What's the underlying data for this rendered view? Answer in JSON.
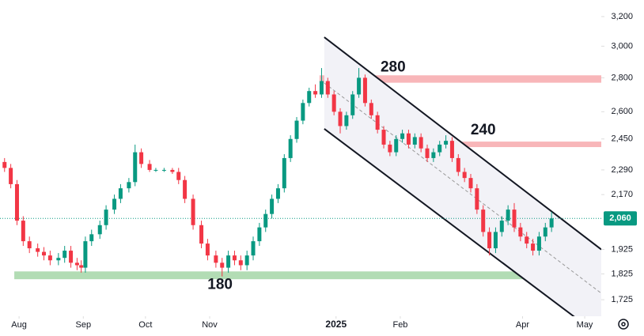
{
  "chart_data": {
    "type": "candlestick",
    "log_scale": true,
    "colors": {
      "up": "#089981",
      "down": "#f23645",
      "channel": "#131722",
      "channel_fill": "#f2f2f7"
    },
    "x": [
      -7,
      -4,
      -1,
      2,
      5,
      9,
      12,
      15,
      19,
      22,
      25,
      28,
      30,
      32,
      35,
      39,
      42,
      46,
      49,
      53,
      56,
      59,
      63,
      66,
      70,
      74,
      77,
      80,
      84,
      88,
      91,
      95,
      98,
      101,
      104,
      107,
      110,
      113,
      116,
      119,
      122,
      125,
      128,
      131,
      134,
      137,
      140,
      143,
      146,
      149,
      152,
      155,
      158,
      161,
      164,
      167,
      170,
      173,
      176,
      179,
      182,
      185,
      188,
      191,
      194,
      197,
      200,
      203,
      206,
      209,
      212,
      215,
      218,
      221,
      224,
      227,
      230,
      233,
      236,
      239,
      242,
      245,
      248,
      251,
      254,
      257
    ],
    "open": [
      2330,
      2300,
      2220,
      2050,
      1960,
      1930,
      1915,
      1900,
      1880,
      1890,
      1920,
      1870,
      1860,
      1850,
      1960,
      1990,
      2030,
      2100,
      2150,
      2200,
      2230,
      2380,
      2320,
      2290,
      2290,
      2290,
      2280,
      2240,
      2150,
      2030,
      1950,
      1900,
      1870,
      1850,
      1900,
      1880,
      1860,
      1900,
      1960,
      2020,
      2080,
      2150,
      2200,
      2350,
      2450,
      2550,
      2650,
      2720,
      2700,
      2780,
      2700,
      2600,
      2520,
      2580,
      2700,
      2800,
      2650,
      2580,
      2500,
      2420,
      2380,
      2450,
      2480,
      2420,
      2460,
      2400,
      2350,
      2380,
      2420,
      2440,
      2350,
      2280,
      2250,
      2200,
      2100,
      2000,
      1930,
      2000,
      2050,
      2100,
      2020,
      1980,
      1950,
      1920,
      1980,
      2020
    ],
    "high": [
      2350,
      2320,
      2240,
      2070,
      1980,
      1950,
      1935,
      1920,
      1910,
      1940,
      1940,
      1890,
      1880,
      1980,
      2010,
      2050,
      2120,
      2170,
      2220,
      2250,
      2420,
      2400,
      2340,
      2300,
      2300,
      2300,
      2300,
      2260,
      2170,
      2050,
      1970,
      1920,
      1890,
      1920,
      1920,
      1900,
      1920,
      1980,
      2040,
      2100,
      2170,
      2220,
      2370,
      2470,
      2570,
      2670,
      2740,
      2760,
      2860,
      2800,
      2720,
      2620,
      2600,
      2720,
      2860,
      2820,
      2670,
      2600,
      2520,
      2440,
      2470,
      2500,
      2500,
      2480,
      2480,
      2420,
      2400,
      2440,
      2470,
      2460,
      2370,
      2300,
      2270,
      2220,
      2120,
      2020,
      2020,
      2070,
      2120,
      2130,
      2040,
      2000,
      1970,
      2000,
      2040,
      2090
    ],
    "low": [
      2280,
      2200,
      2030,
      1940,
      1910,
      1895,
      1880,
      1860,
      1860,
      1870,
      1850,
      1840,
      1830,
      1830,
      1940,
      1970,
      2010,
      2080,
      2130,
      2180,
      2210,
      2300,
      2280,
      2280,
      2280,
      2270,
      2220,
      2130,
      2010,
      1930,
      1880,
      1850,
      1815,
      1830,
      1860,
      1840,
      1840,
      1880,
      1940,
      2000,
      2060,
      2130,
      2180,
      2330,
      2430,
      2530,
      2630,
      2680,
      2680,
      2680,
      2580,
      2480,
      2500,
      2560,
      2680,
      2630,
      2560,
      2480,
      2400,
      2360,
      2360,
      2430,
      2400,
      2400,
      2380,
      2330,
      2330,
      2360,
      2400,
      2330,
      2260,
      2230,
      2180,
      2080,
      1980,
      1900,
      1910,
      1980,
      2030,
      2000,
      1960,
      1930,
      1900,
      1900,
      1960,
      2000
    ],
    "close": [
      2300,
      2220,
      2050,
      1960,
      1930,
      1915,
      1900,
      1880,
      1890,
      1920,
      1870,
      1860,
      1850,
      1960,
      1990,
      2030,
      2100,
      2150,
      2200,
      2230,
      2380,
      2320,
      2290,
      2290,
      2290,
      2280,
      2240,
      2150,
      2030,
      1950,
      1900,
      1870,
      1850,
      1900,
      1880,
      1860,
      1900,
      1960,
      2020,
      2080,
      2150,
      2200,
      2350,
      2450,
      2550,
      2650,
      2720,
      2700,
      2780,
      2700,
      2600,
      2520,
      2580,
      2700,
      2800,
      2650,
      2580,
      2500,
      2420,
      2380,
      2450,
      2480,
      2420,
      2460,
      2400,
      2350,
      2380,
      2420,
      2440,
      2350,
      2280,
      2250,
      2200,
      2100,
      2000,
      1930,
      2000,
      2050,
      2100,
      2020,
      1980,
      1950,
      1920,
      1980,
      2020,
      2060
    ],
    "xlim": [
      -9.2,
      281
    ],
    "xticks": [
      {
        "value": 0,
        "label": "Aug"
      },
      {
        "value": 31,
        "label": "Sep"
      },
      {
        "value": 61,
        "label": "Oct"
      },
      {
        "value": 92,
        "label": "Nov"
      },
      {
        "value": 153,
        "label": "2025"
      },
      {
        "value": 184,
        "label": "Feb"
      },
      {
        "value": 243,
        "label": "Apr"
      },
      {
        "value": 273,
        "label": "May"
      }
    ],
    "ylim": [
      1664,
      3318
    ],
    "yticks": [
      {
        "value": 3200,
        "label": "3,200"
      },
      {
        "value": 3000,
        "label": "3,000"
      },
      {
        "value": 2800,
        "label": "2,800"
      },
      {
        "value": 2600,
        "label": "2,600"
      },
      {
        "value": 2450,
        "label": "2,450"
      },
      {
        "value": 2290,
        "label": "2,290"
      },
      {
        "value": 2170,
        "label": "2,170"
      },
      {
        "value": 1925,
        "label": "1,925"
      },
      {
        "value": 1825,
        "label": "1,825"
      },
      {
        "value": 1725,
        "label": "1,725"
      }
    ],
    "last_price": {
      "value": 2060,
      "label": "2,060"
    },
    "zones": [
      {
        "low": 2770,
        "high": 2815,
        "start": 145,
        "color": "#f7a9ad"
      },
      {
        "low": 2407,
        "high": 2436,
        "start": 208,
        "color": "#f7a9ad"
      },
      {
        "low": 1804,
        "high": 1835,
        "start": -2.3,
        "color": "#a5d6a7"
      }
    ],
    "channel": {
      "start": 147.3,
      "end": 281,
      "upper": [
        3059,
        1925
      ],
      "lower": [
        2505,
        1590
      ]
    },
    "annotations": [
      {
        "text": "280",
        "x": 180.5,
        "y": 2862
      },
      {
        "text": "240",
        "x": 224,
        "y": 2495
      },
      {
        "text": "180",
        "x": 97,
        "y": 1781
      }
    ]
  }
}
